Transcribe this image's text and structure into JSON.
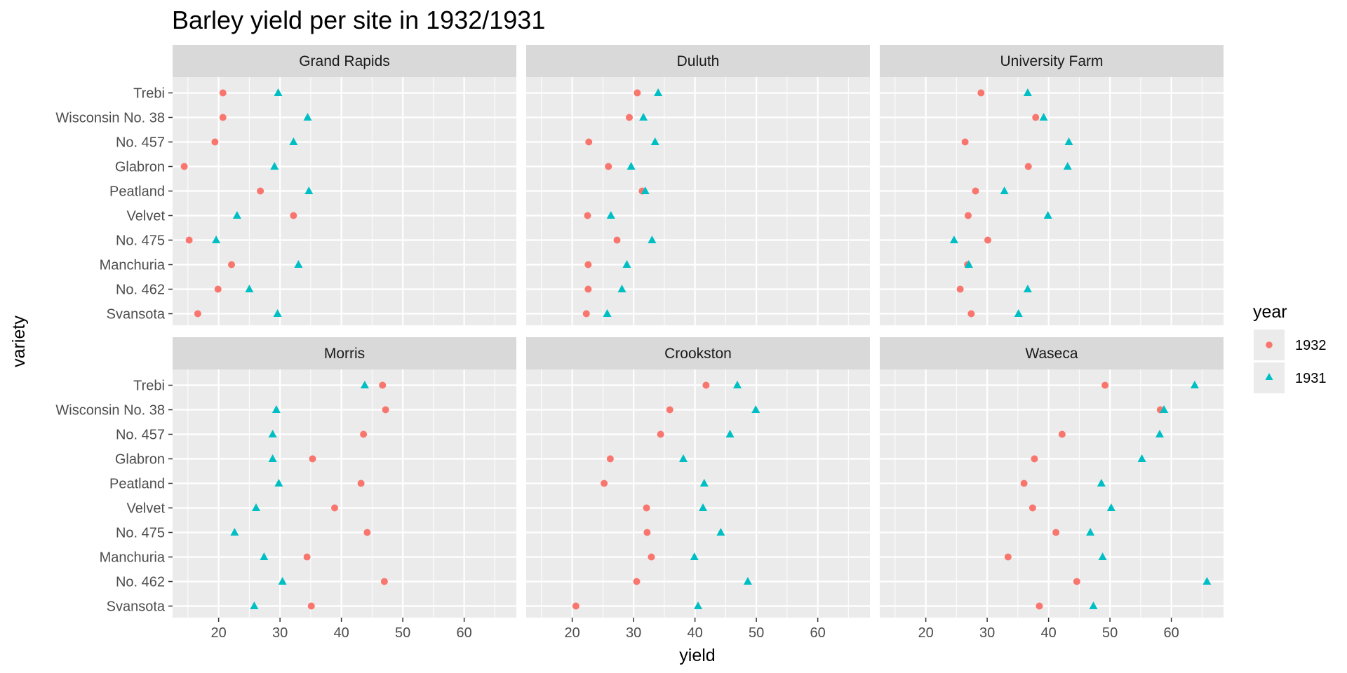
{
  "colors": {
    "panel_bg": "#ebebeb",
    "grid_major": "#ffffff",
    "strip_bg": "#d9d9d9",
    "tick": "#333333",
    "series_1932": "#F8766D",
    "series_1931": "#00BFC4"
  },
  "chart_data": {
    "type": "scatter",
    "title": "Barley yield per site in 1932/1931",
    "xlabel": "yield",
    "ylabel": "variety",
    "xlim": [
      12.5,
      68.5
    ],
    "x_ticks": [
      20,
      30,
      40,
      50,
      60
    ],
    "grid": true,
    "facet_rows": 2,
    "facet_cols": 3,
    "varieties": [
      "Trebi",
      "Wisconsin No. 38",
      "No. 457",
      "Glabron",
      "Peatland",
      "Velvet",
      "No. 475",
      "Manchuria",
      "No. 462",
      "Svansota"
    ],
    "legend": {
      "title": "year",
      "placement": "right",
      "entries": [
        {
          "name": "1932",
          "shape": "circle",
          "color": "#F8766D"
        },
        {
          "name": "1931",
          "shape": "triangle",
          "color": "#00BFC4"
        }
      ]
    },
    "panels": [
      {
        "site": "Grand Rapids",
        "series": [
          {
            "name": "1932",
            "values": [
              20.7,
              20.7,
              19.4,
              14.4,
              26.8,
              32.2,
              15.2,
              22.1,
              19.9,
              16.6
            ]
          },
          {
            "name": "1931",
            "values": [
              29.7,
              34.5,
              32.2,
              29.1,
              34.7,
              23.0,
              19.6,
              33.0,
              25.0,
              29.6
            ]
          }
        ]
      },
      {
        "site": "Duluth",
        "series": [
          {
            "name": "1932",
            "values": [
              30.6,
              29.3,
              22.7,
              25.9,
              31.4,
              22.5,
              27.3,
              22.6,
              22.6,
              22.3
            ]
          },
          {
            "name": "1931",
            "values": [
              34.0,
              31.6,
              33.5,
              29.6,
              31.9,
              26.3,
              33.0,
              28.9,
              28.1,
              25.7
            ]
          }
        ]
      },
      {
        "site": "University Farm",
        "series": [
          {
            "name": "1932",
            "values": [
              29.0,
              37.9,
              26.4,
              36.7,
              28.1,
              26.9,
              30.1,
              26.8,
              25.6,
              27.4
            ]
          },
          {
            "name": "1931",
            "values": [
              36.6,
              39.2,
              43.3,
              43.1,
              32.8,
              39.9,
              24.6,
              27.0,
              36.6,
              35.1
            ]
          }
        ]
      },
      {
        "site": "Morris",
        "series": [
          {
            "name": "1932",
            "values": [
              46.7,
              47.2,
              43.6,
              35.3,
              43.2,
              38.9,
              44.2,
              34.4,
              47.0,
              35.1
            ]
          },
          {
            "name": "1931",
            "values": [
              43.8,
              29.4,
              28.8,
              28.8,
              29.8,
              26.1,
              22.6,
              27.4,
              30.4,
              25.8
            ]
          }
        ]
      },
      {
        "site": "Crookston",
        "series": [
          {
            "name": "1932",
            "values": [
              41.8,
              35.9,
              34.4,
              26.2,
              25.2,
              32.1,
              32.2,
              32.9,
              30.5,
              20.6
            ]
          },
          {
            "name": "1931",
            "values": [
              46.9,
              49.9,
              45.7,
              38.1,
              41.5,
              41.3,
              44.2,
              39.9,
              48.6,
              40.5
            ]
          }
        ]
      },
      {
        "site": "Waseca",
        "series": [
          {
            "name": "1932",
            "values": [
              49.2,
              58.2,
              42.2,
              37.7,
              36.0,
              37.4,
              41.2,
              33.4,
              44.6,
              38.5
            ]
          },
          {
            "name": "1931",
            "values": [
              63.8,
              58.8,
              58.1,
              55.2,
              48.6,
              50.2,
              46.8,
              48.8,
              65.8,
              47.3
            ]
          }
        ]
      }
    ]
  }
}
